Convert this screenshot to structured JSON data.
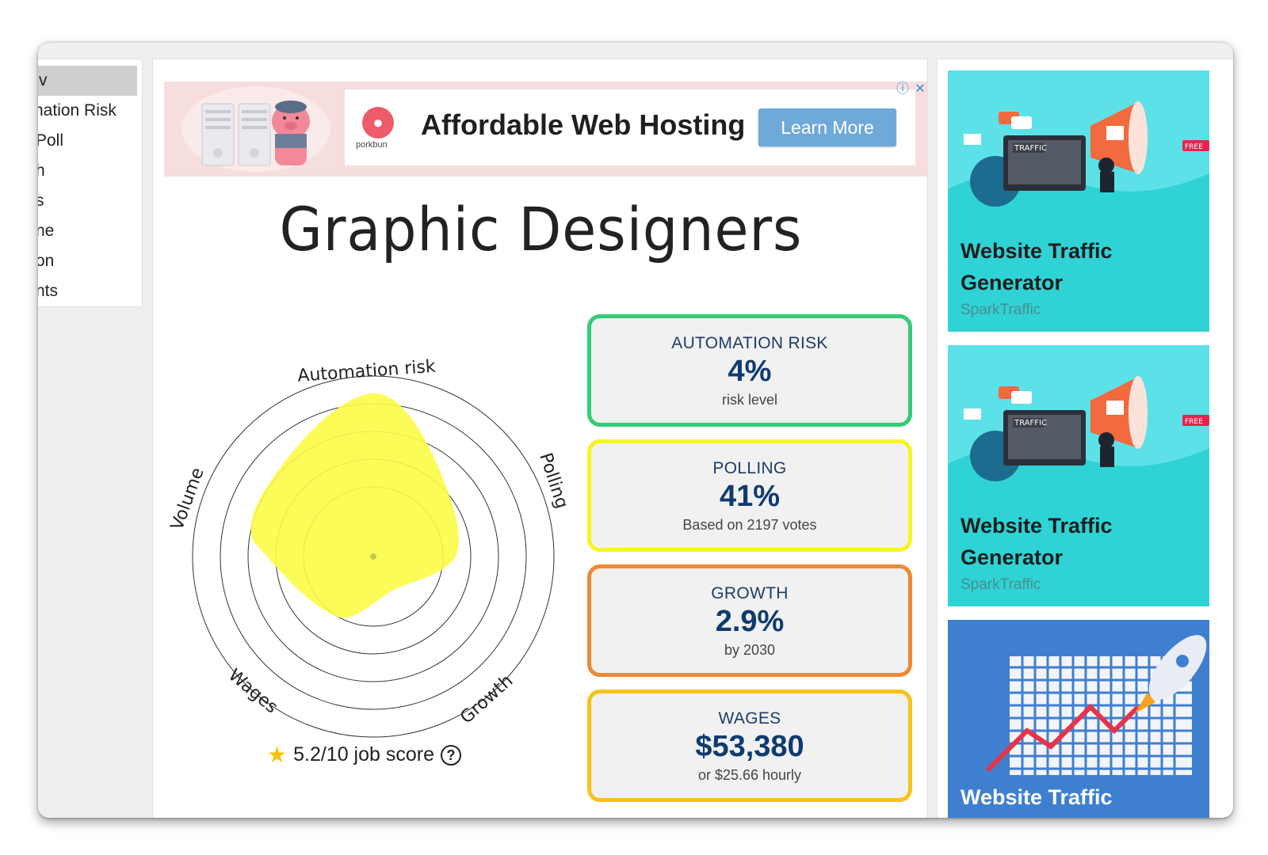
{
  "nav": {
    "items": [
      "v",
      "nation Risk",
      "Poll",
      "h",
      "s",
      "ne",
      "on",
      "nts"
    ]
  },
  "ad": {
    "logo_text": "porkbun",
    "title": "Affordable Web Hosting",
    "button": "Learn More",
    "info_icon": "ⓘ",
    "close_icon": "✕"
  },
  "page": {
    "title": "Graphic Designers"
  },
  "radar": {
    "axes": [
      "Automation risk",
      "Polling",
      "Growth",
      "Wages",
      "Volume"
    ],
    "fill_color": "#fcfc47",
    "rings": 5
  },
  "score": {
    "text": "5.2/10 job score",
    "help": "?"
  },
  "cards": [
    {
      "label": "AUTOMATION RISK",
      "value": "4%",
      "sub": "risk level",
      "color": "#33cc77"
    },
    {
      "label": "POLLING",
      "value": "41%",
      "sub": "Based on 2197 votes",
      "color": "#f5f522"
    },
    {
      "label": "GROWTH",
      "value": "2.9%",
      "sub": "by 2030",
      "color": "#ee8833"
    },
    {
      "label": "WAGES",
      "value": "$53,380",
      "sub": "or $25.66 hourly",
      "color": "#f7c21a"
    }
  ],
  "side_ads": [
    {
      "title": "Website Traffic Generator",
      "source": "SparkTraffic",
      "badge": "FREE",
      "art_label": "TRAFFIC"
    },
    {
      "title": "Website Traffic Generator",
      "source": "SparkTraffic",
      "badge": "FREE",
      "art_label": "TRAFFIC"
    },
    {
      "title": "Website Traffic",
      "source": ""
    }
  ]
}
